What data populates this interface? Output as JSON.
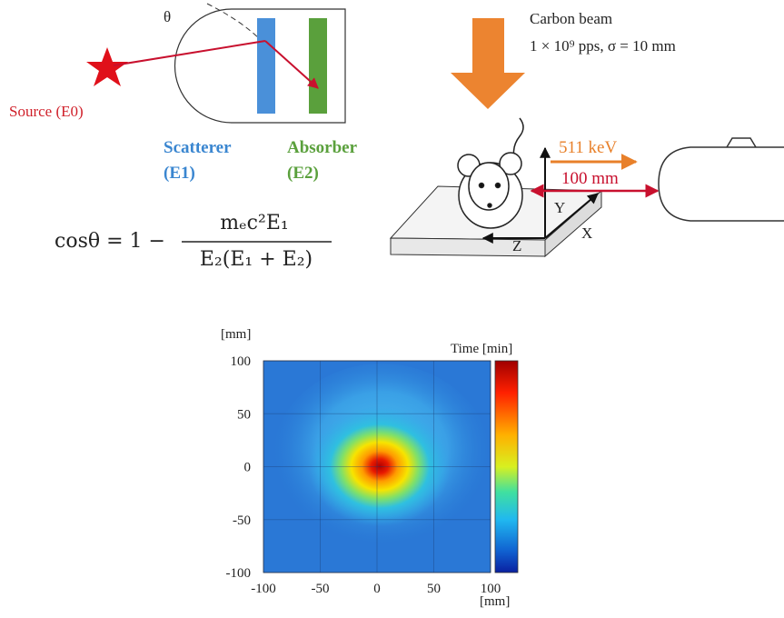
{
  "compton": {
    "theta": "θ",
    "source": "Source (E0)",
    "scatterer": "Scatterer",
    "scatterer_energy": "(E1)",
    "absorber": "Absorber",
    "absorber_energy": "(E2)"
  },
  "formula": {
    "lhs": "cosθ = 1 −",
    "numerator": "mₑc²E₁",
    "denominator": "E₂(E₁ + E₂)"
  },
  "setup": {
    "beam": "Carbon beam",
    "beam_spec": "1 × 10⁹ pps, σ = 10 mm",
    "gamma": "511 keV",
    "distance": "100 mm",
    "axis_y": "Y",
    "axis_z": "Z",
    "axis_x": "X"
  },
  "heatmap": {
    "y_unit": "[mm]",
    "x_unit": "[mm]",
    "colorbar_label": "Time [min]",
    "xlim": [
      -100,
      100
    ],
    "ylim": [
      -100,
      100
    ],
    "xticks": [
      -100,
      -50,
      0,
      50,
      100
    ],
    "yticks": [
      100,
      50,
      0,
      -50,
      -100
    ]
  }
}
